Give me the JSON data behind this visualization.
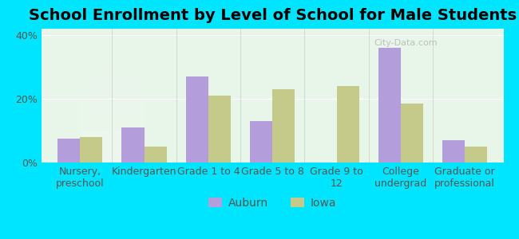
{
  "title": "School Enrollment by Level of School for Male Students",
  "categories": [
    "Nursery,\npreschool",
    "Kindergarten",
    "Grade 1 to 4",
    "Grade 5 to 8",
    "Grade 9 to\n12",
    "College\nundergrad",
    "Graduate or\nprofessional"
  ],
  "auburn_values": [
    7.5,
    11.0,
    27.0,
    13.0,
    0.0,
    36.0,
    7.0
  ],
  "iowa_values": [
    8.0,
    5.0,
    21.0,
    23.0,
    24.0,
    18.5,
    5.0
  ],
  "auburn_color": "#b39ddb",
  "iowa_color": "#c5c98a",
  "background_outer": "#00e5ff",
  "background_inner_top": "#e8f5e9",
  "background_inner_bottom": "#f0f4e8",
  "ylim": [
    0,
    42
  ],
  "yticks": [
    0,
    20,
    40
  ],
  "ytick_labels": [
    "0%",
    "20%",
    "40%"
  ],
  "legend_labels": [
    "Auburn",
    "Iowa"
  ],
  "title_fontsize": 14,
  "tick_fontsize": 9,
  "legend_fontsize": 10,
  "bar_width": 0.35,
  "figsize": [
    6.5,
    3.0
  ],
  "dpi": 100
}
